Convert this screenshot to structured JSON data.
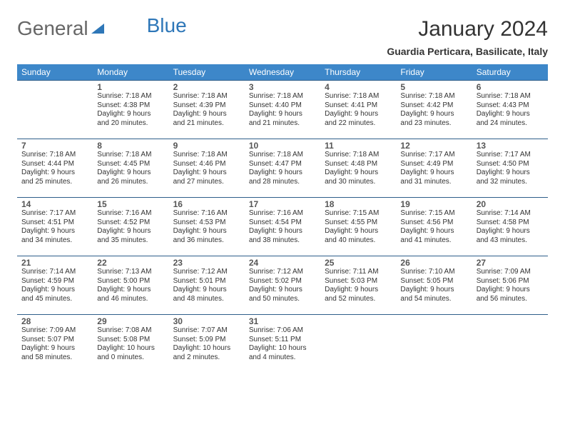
{
  "brand": {
    "part1": "General",
    "part2": "Blue"
  },
  "title": "January 2024",
  "location": "Guardia Perticara, Basilicate, Italy",
  "colors": {
    "header_bg": "#3d87c9",
    "header_text": "#ffffff",
    "cell_border": "#2e5e8a",
    "brand_blue": "#2e77b8",
    "text": "#333333",
    "background": "#ffffff"
  },
  "dayNames": [
    "Sunday",
    "Monday",
    "Tuesday",
    "Wednesday",
    "Thursday",
    "Friday",
    "Saturday"
  ],
  "weeks": [
    [
      null,
      {
        "n": "1",
        "sr": "Sunrise: 7:18 AM",
        "ss": "Sunset: 4:38 PM",
        "d1": "Daylight: 9 hours",
        "d2": "and 20 minutes."
      },
      {
        "n": "2",
        "sr": "Sunrise: 7:18 AM",
        "ss": "Sunset: 4:39 PM",
        "d1": "Daylight: 9 hours",
        "d2": "and 21 minutes."
      },
      {
        "n": "3",
        "sr": "Sunrise: 7:18 AM",
        "ss": "Sunset: 4:40 PM",
        "d1": "Daylight: 9 hours",
        "d2": "and 21 minutes."
      },
      {
        "n": "4",
        "sr": "Sunrise: 7:18 AM",
        "ss": "Sunset: 4:41 PM",
        "d1": "Daylight: 9 hours",
        "d2": "and 22 minutes."
      },
      {
        "n": "5",
        "sr": "Sunrise: 7:18 AM",
        "ss": "Sunset: 4:42 PM",
        "d1": "Daylight: 9 hours",
        "d2": "and 23 minutes."
      },
      {
        "n": "6",
        "sr": "Sunrise: 7:18 AM",
        "ss": "Sunset: 4:43 PM",
        "d1": "Daylight: 9 hours",
        "d2": "and 24 minutes."
      }
    ],
    [
      {
        "n": "7",
        "sr": "Sunrise: 7:18 AM",
        "ss": "Sunset: 4:44 PM",
        "d1": "Daylight: 9 hours",
        "d2": "and 25 minutes."
      },
      {
        "n": "8",
        "sr": "Sunrise: 7:18 AM",
        "ss": "Sunset: 4:45 PM",
        "d1": "Daylight: 9 hours",
        "d2": "and 26 minutes."
      },
      {
        "n": "9",
        "sr": "Sunrise: 7:18 AM",
        "ss": "Sunset: 4:46 PM",
        "d1": "Daylight: 9 hours",
        "d2": "and 27 minutes."
      },
      {
        "n": "10",
        "sr": "Sunrise: 7:18 AM",
        "ss": "Sunset: 4:47 PM",
        "d1": "Daylight: 9 hours",
        "d2": "and 28 minutes."
      },
      {
        "n": "11",
        "sr": "Sunrise: 7:18 AM",
        "ss": "Sunset: 4:48 PM",
        "d1": "Daylight: 9 hours",
        "d2": "and 30 minutes."
      },
      {
        "n": "12",
        "sr": "Sunrise: 7:17 AM",
        "ss": "Sunset: 4:49 PM",
        "d1": "Daylight: 9 hours",
        "d2": "and 31 minutes."
      },
      {
        "n": "13",
        "sr": "Sunrise: 7:17 AM",
        "ss": "Sunset: 4:50 PM",
        "d1": "Daylight: 9 hours",
        "d2": "and 32 minutes."
      }
    ],
    [
      {
        "n": "14",
        "sr": "Sunrise: 7:17 AM",
        "ss": "Sunset: 4:51 PM",
        "d1": "Daylight: 9 hours",
        "d2": "and 34 minutes."
      },
      {
        "n": "15",
        "sr": "Sunrise: 7:16 AM",
        "ss": "Sunset: 4:52 PM",
        "d1": "Daylight: 9 hours",
        "d2": "and 35 minutes."
      },
      {
        "n": "16",
        "sr": "Sunrise: 7:16 AM",
        "ss": "Sunset: 4:53 PM",
        "d1": "Daylight: 9 hours",
        "d2": "and 36 minutes."
      },
      {
        "n": "17",
        "sr": "Sunrise: 7:16 AM",
        "ss": "Sunset: 4:54 PM",
        "d1": "Daylight: 9 hours",
        "d2": "and 38 minutes."
      },
      {
        "n": "18",
        "sr": "Sunrise: 7:15 AM",
        "ss": "Sunset: 4:55 PM",
        "d1": "Daylight: 9 hours",
        "d2": "and 40 minutes."
      },
      {
        "n": "19",
        "sr": "Sunrise: 7:15 AM",
        "ss": "Sunset: 4:56 PM",
        "d1": "Daylight: 9 hours",
        "d2": "and 41 minutes."
      },
      {
        "n": "20",
        "sr": "Sunrise: 7:14 AM",
        "ss": "Sunset: 4:58 PM",
        "d1": "Daylight: 9 hours",
        "d2": "and 43 minutes."
      }
    ],
    [
      {
        "n": "21",
        "sr": "Sunrise: 7:14 AM",
        "ss": "Sunset: 4:59 PM",
        "d1": "Daylight: 9 hours",
        "d2": "and 45 minutes."
      },
      {
        "n": "22",
        "sr": "Sunrise: 7:13 AM",
        "ss": "Sunset: 5:00 PM",
        "d1": "Daylight: 9 hours",
        "d2": "and 46 minutes."
      },
      {
        "n": "23",
        "sr": "Sunrise: 7:12 AM",
        "ss": "Sunset: 5:01 PM",
        "d1": "Daylight: 9 hours",
        "d2": "and 48 minutes."
      },
      {
        "n": "24",
        "sr": "Sunrise: 7:12 AM",
        "ss": "Sunset: 5:02 PM",
        "d1": "Daylight: 9 hours",
        "d2": "and 50 minutes."
      },
      {
        "n": "25",
        "sr": "Sunrise: 7:11 AM",
        "ss": "Sunset: 5:03 PM",
        "d1": "Daylight: 9 hours",
        "d2": "and 52 minutes."
      },
      {
        "n": "26",
        "sr": "Sunrise: 7:10 AM",
        "ss": "Sunset: 5:05 PM",
        "d1": "Daylight: 9 hours",
        "d2": "and 54 minutes."
      },
      {
        "n": "27",
        "sr": "Sunrise: 7:09 AM",
        "ss": "Sunset: 5:06 PM",
        "d1": "Daylight: 9 hours",
        "d2": "and 56 minutes."
      }
    ],
    [
      {
        "n": "28",
        "sr": "Sunrise: 7:09 AM",
        "ss": "Sunset: 5:07 PM",
        "d1": "Daylight: 9 hours",
        "d2": "and 58 minutes."
      },
      {
        "n": "29",
        "sr": "Sunrise: 7:08 AM",
        "ss": "Sunset: 5:08 PM",
        "d1": "Daylight: 10 hours",
        "d2": "and 0 minutes."
      },
      {
        "n": "30",
        "sr": "Sunrise: 7:07 AM",
        "ss": "Sunset: 5:09 PM",
        "d1": "Daylight: 10 hours",
        "d2": "and 2 minutes."
      },
      {
        "n": "31",
        "sr": "Sunrise: 7:06 AM",
        "ss": "Sunset: 5:11 PM",
        "d1": "Daylight: 10 hours",
        "d2": "and 4 minutes."
      },
      null,
      null,
      null
    ]
  ]
}
